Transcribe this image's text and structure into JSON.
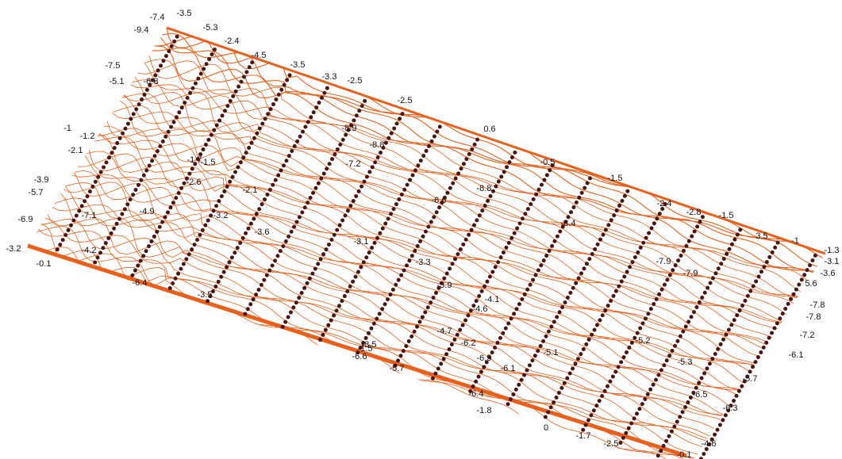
{
  "labels": [
    "-7.4",
    "-3.5",
    "-9.4",
    "-5.3",
    "-2.4",
    "-4.5",
    "-3.5",
    "-3.3",
    "-2.5",
    "-2.5",
    "0.6",
    "-0.5",
    "-1.5",
    "-2.4",
    "-2.8",
    "-1.5",
    "3.5",
    "-1",
    "-1.3",
    "-3.1",
    "-3.6",
    "5.6",
    "-7.8",
    "-7.8",
    "-7.2",
    "-6.1",
    "-5.7",
    "-6.3",
    "-4.6",
    "-0.1",
    "-2.5",
    "-1.7",
    "0",
    "-1.8",
    "-5.7",
    "-1.5",
    "-6.5",
    "-6.4",
    "-6.1",
    "-3.2",
    "-0.1",
    "-6.9",
    "-5.7",
    "-3.9",
    "-2.1",
    "-1.2",
    "-1",
    "-5.1",
    "-7.5",
    "-6.8",
    "-8.9",
    "-8.8",
    "-7.2",
    "-6.6",
    "-8.8",
    "-8.4",
    "-7.9",
    "-7.9",
    "-3.6",
    "-3.3",
    "-3.9",
    "-4.6",
    "-5.1",
    "-5.2",
    "-5.3",
    "-6.5",
    "-3.1",
    "-4.1",
    "-4.7",
    "-6.2",
    "-6.4",
    "-3.5",
    "-6.6",
    "-8.5",
    "-4.2",
    "-7.1",
    "-4.9",
    "-3.2",
    "-2.6",
    "-1.7",
    "-1.5",
    "-2.1"
  ]
}
